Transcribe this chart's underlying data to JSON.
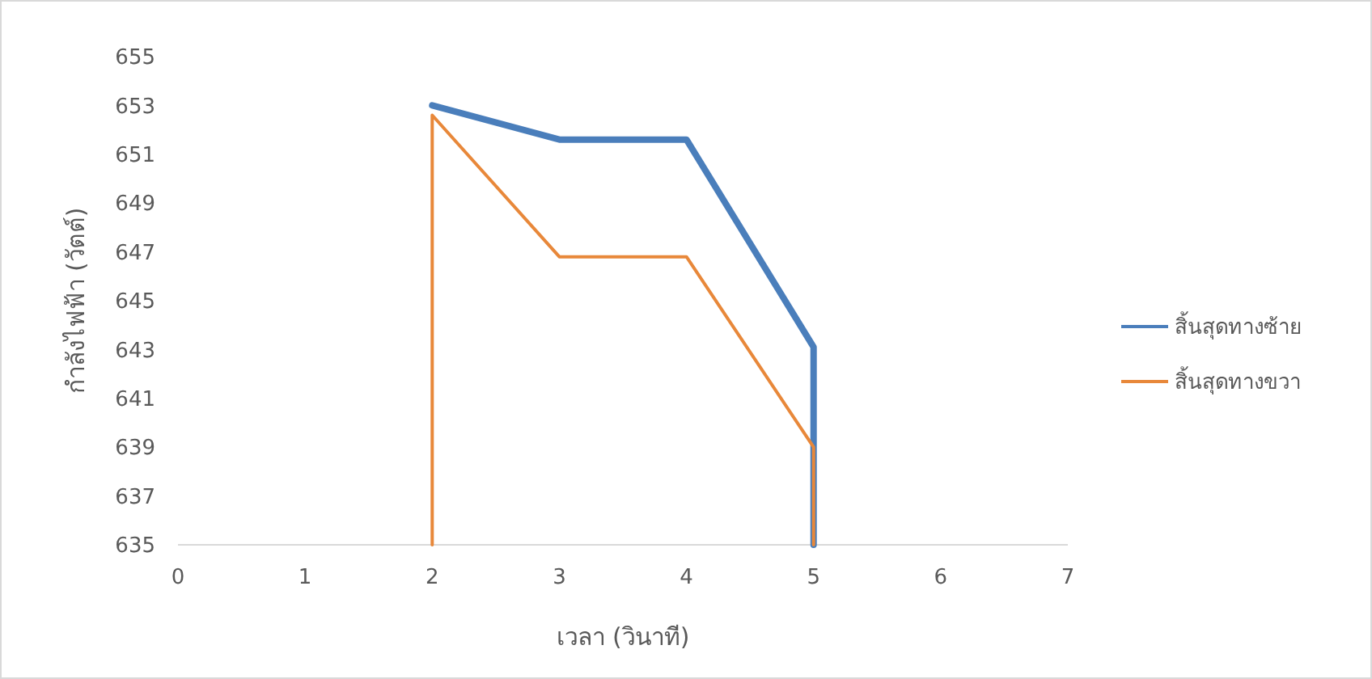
{
  "chart_data": {
    "type": "line",
    "xlabel": "เวลา (วินาที)",
    "ylabel": "กำลังไฟฟ้า (วัตต์)",
    "xlim": [
      0,
      7
    ],
    "xticks": [
      0,
      1,
      2,
      3,
      4,
      5,
      6,
      7
    ],
    "ylim": [
      635,
      655
    ],
    "yticks": [
      635,
      637,
      639,
      641,
      643,
      645,
      647,
      649,
      651,
      653,
      655
    ],
    "grid": false,
    "legend": "right",
    "marker": "none",
    "line_style": "solid",
    "series": [
      {
        "name": "สิ้นสุดทางซ้าย",
        "color": "#4a7ebb",
        "x": [
          2,
          3,
          4,
          5,
          5
        ],
        "values": [
          653,
          651.6,
          651.6,
          643.1,
          635
        ]
      },
      {
        "name": "สิ้นสุดทางขวา",
        "color": "#e8883a",
        "x": [
          2,
          2,
          3,
          4,
          5,
          5
        ],
        "values": [
          635,
          652.6,
          646.8,
          646.8,
          639,
          635
        ]
      }
    ]
  }
}
